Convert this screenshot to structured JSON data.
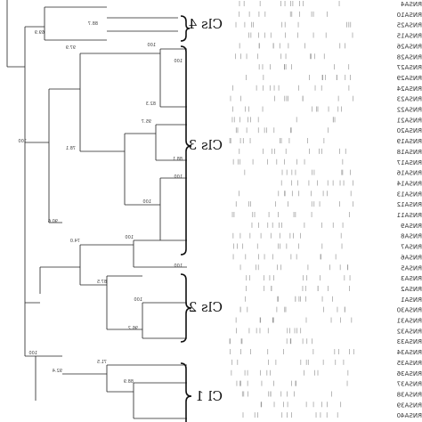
{
  "clusters": [
    "Cls 4",
    "Cls 3",
    "Cls 2",
    "Cl 1"
  ],
  "node_labels": [
    "100",
    "69.9",
    "88.7",
    "97.9",
    "100",
    "78.1",
    "82.3",
    "100",
    "95.7",
    "88.1",
    "100",
    "100",
    "90.6",
    "74.0",
    "100",
    "100",
    "87.5",
    "100",
    "96.2",
    "100",
    "92.4",
    "71.5",
    "88.9"
  ],
  "isolates": [
    "RNSA4",
    "RNSA10",
    "RNSA25",
    "RNSA15",
    "RNSA26",
    "RNSA28",
    "RNSA27",
    "RNSA29",
    "RNSA24",
    "RNSA23",
    "RNSA22",
    "RNSA21",
    "RNSA20",
    "RNSA19",
    "RNSA18",
    "RNSA17",
    "RNSA16",
    "RNSA14",
    "RNSA13",
    "RNSA12",
    "RNSA11",
    "RNSA9",
    "RNSA8",
    "RNSA7",
    "RNSA6",
    "RNSA5",
    "RNSA3",
    "RNSA2",
    "RNSA1",
    "RNSA30",
    "RNSA31",
    "RNSA32",
    "RNSA33",
    "RNSA34",
    "RNSA35",
    "RNSA36",
    "RNSA37",
    "RNSA38",
    "RNSA39",
    "RNSA40"
  ]
}
